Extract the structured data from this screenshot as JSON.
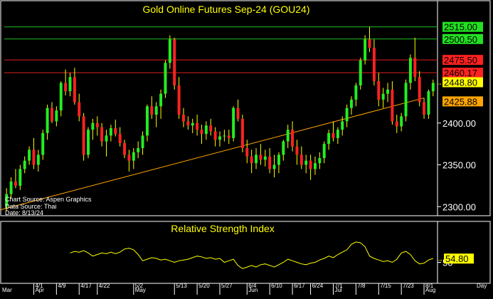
{
  "chart_data": {
    "type": "candlestick",
    "title": "Gold Online Futures Sep-24 (GOU24)",
    "source_lines": [
      "Chart Source: Aspen Graphics",
      "Data Source: Thai",
      "Date: 8/13/24"
    ],
    "ylim": [
      2290,
      2525
    ],
    "y_ticks": [
      2300,
      2350,
      2400
    ],
    "y_tick_labels": [
      "2300.00",
      "2350.00",
      "2400.00"
    ],
    "levels": [
      {
        "value": 2515.0,
        "label": "2515.00",
        "color": "#22c022",
        "label_bg": "#22e022"
      },
      {
        "value": 2500.5,
        "label": "2500.50",
        "color": "#22c022",
        "label_bg": "#22e022"
      },
      {
        "value": 2475.5,
        "label": "2475.50",
        "color": "#e02020",
        "label_bg": "#ff2020"
      },
      {
        "value": 2460.17,
        "label": "2460.17",
        "color": "#e02020",
        "label_bg": "#ff2020"
      }
    ],
    "current_price": {
      "value": 2448.8,
      "label": "2448.80",
      "label_bg": "#ffff00"
    },
    "trendline_label": {
      "value": 2425.88,
      "label": "2425.88",
      "label_bg": "#ffa500"
    },
    "trendline": {
      "start": [
        -14,
        2278
      ],
      "end": [
        92,
        2430
      ],
      "color": "#ffa500"
    },
    "candles": [
      [
        2300,
        2322,
        2295,
        2315
      ],
      [
        2315,
        2335,
        2310,
        2330
      ],
      [
        2330,
        2345,
        2322,
        2325
      ],
      [
        2325,
        2350,
        2320,
        2345
      ],
      [
        2345,
        2360,
        2340,
        2355
      ],
      [
        2355,
        2372,
        2350,
        2368
      ],
      [
        2368,
        2382,
        2345,
        2350
      ],
      [
        2350,
        2368,
        2342,
        2362
      ],
      [
        2362,
        2392,
        2356,
        2388
      ],
      [
        2388,
        2422,
        2380,
        2418
      ],
      [
        2418,
        2425,
        2400,
        2402
      ],
      [
        2402,
        2420,
        2396,
        2415
      ],
      [
        2415,
        2450,
        2408,
        2448
      ],
      [
        2448,
        2464,
        2433,
        2438
      ],
      [
        2438,
        2460,
        2432,
        2455
      ],
      [
        2455,
        2466,
        2422,
        2425
      ],
      [
        2425,
        2435,
        2402,
        2408
      ],
      [
        2408,
        2412,
        2355,
        2362
      ],
      [
        2362,
        2395,
        2358,
        2392
      ],
      [
        2392,
        2405,
        2380,
        2400
      ],
      [
        2400,
        2408,
        2385,
        2395
      ],
      [
        2395,
        2400,
        2372,
        2378
      ],
      [
        2378,
        2392,
        2360,
        2385
      ],
      [
        2385,
        2398,
        2378,
        2394
      ],
      [
        2394,
        2404,
        2384,
        2387
      ],
      [
        2387,
        2395,
        2372,
        2376
      ],
      [
        2376,
        2380,
        2358,
        2362
      ],
      [
        2362,
        2368,
        2342,
        2355
      ],
      [
        2355,
        2370,
        2345,
        2365
      ],
      [
        2365,
        2378,
        2358,
        2370
      ],
      [
        2370,
        2390,
        2362,
        2385
      ],
      [
        2385,
        2422,
        2378,
        2420
      ],
      [
        2420,
        2432,
        2405,
        2410
      ],
      [
        2410,
        2425,
        2395,
        2420
      ],
      [
        2420,
        2440,
        2405,
        2435
      ],
      [
        2435,
        2475,
        2430,
        2472
      ],
      [
        2472,
        2505,
        2465,
        2500
      ],
      [
        2500,
        2502,
        2440,
        2445
      ],
      [
        2445,
        2455,
        2405,
        2410
      ],
      [
        2410,
        2418,
        2395,
        2402
      ],
      [
        2402,
        2408,
        2392,
        2397
      ],
      [
        2397,
        2405,
        2388,
        2400
      ],
      [
        2400,
        2410,
        2385,
        2392
      ],
      [
        2392,
        2398,
        2375,
        2387
      ],
      [
        2387,
        2402,
        2380,
        2397
      ],
      [
        2397,
        2405,
        2385,
        2390
      ],
      [
        2390,
        2395,
        2372,
        2380
      ],
      [
        2380,
        2390,
        2372,
        2384
      ],
      [
        2384,
        2392,
        2378,
        2385
      ],
      [
        2385,
        2392,
        2375,
        2382
      ],
      [
        2382,
        2420,
        2378,
        2418
      ],
      [
        2418,
        2428,
        2402,
        2405
      ],
      [
        2405,
        2410,
        2365,
        2370
      ],
      [
        2370,
        2380,
        2352,
        2360
      ],
      [
        2360,
        2368,
        2340,
        2352
      ],
      [
        2352,
        2370,
        2345,
        2362
      ],
      [
        2362,
        2375,
        2350,
        2356
      ],
      [
        2356,
        2368,
        2348,
        2360
      ],
      [
        2360,
        2370,
        2340,
        2345
      ],
      [
        2345,
        2362,
        2335,
        2350
      ],
      [
        2350,
        2365,
        2340,
        2362
      ],
      [
        2362,
        2380,
        2355,
        2378
      ],
      [
        2378,
        2398,
        2370,
        2392
      ],
      [
        2392,
        2402,
        2366,
        2372
      ],
      [
        2372,
        2380,
        2350,
        2362
      ],
      [
        2362,
        2372,
        2345,
        2350
      ],
      [
        2350,
        2362,
        2340,
        2355
      ],
      [
        2355,
        2362,
        2332,
        2345
      ],
      [
        2345,
        2360,
        2338,
        2352
      ],
      [
        2352,
        2365,
        2345,
        2358
      ],
      [
        2358,
        2378,
        2352,
        2375
      ],
      [
        2375,
        2392,
        2368,
        2388
      ],
      [
        2388,
        2402,
        2378,
        2382
      ],
      [
        2382,
        2395,
        2375,
        2392
      ],
      [
        2392,
        2408,
        2385,
        2402
      ],
      [
        2402,
        2422,
        2395,
        2418
      ],
      [
        2418,
        2432,
        2410,
        2428
      ],
      [
        2428,
        2448,
        2420,
        2445
      ],
      [
        2445,
        2478,
        2440,
        2475
      ],
      [
        2475,
        2505,
        2470,
        2500
      ],
      [
        2500,
        2515,
        2485,
        2490
      ],
      [
        2490,
        2500,
        2445,
        2450
      ],
      [
        2450,
        2460,
        2420,
        2428
      ],
      [
        2428,
        2442,
        2418,
        2435
      ],
      [
        2435,
        2448,
        2425,
        2440
      ],
      [
        2440,
        2450,
        2398,
        2402
      ],
      [
        2402,
        2410,
        2388,
        2396
      ],
      [
        2396,
        2412,
        2390,
        2408
      ],
      [
        2408,
        2452,
        2402,
        2448
      ],
      [
        2448,
        2482,
        2440,
        2478
      ],
      [
        2478,
        2502,
        2450,
        2455
      ],
      [
        2455,
        2462,
        2420,
        2425
      ],
      [
        2425,
        2430,
        2405,
        2410
      ],
      [
        2410,
        2440,
        2405,
        2438
      ],
      [
        2438,
        2452,
        2432,
        2448
      ]
    ],
    "rsi": {
      "title": "Relative Strength Index",
      "ylim": [
        25,
        85
      ],
      "y_ticks": [
        50
      ],
      "y_tick_labels": [
        "50"
      ],
      "current": {
        "value": 54.8,
        "label": "54.80",
        "label_bg": "#ffff00"
      },
      "values": [
        null,
        null,
        null,
        null,
        null,
        null,
        null,
        null,
        null,
        null,
        null,
        null,
        null,
        null,
        62,
        64,
        63,
        65,
        62,
        58,
        60,
        62,
        61,
        63,
        61,
        63,
        67,
        68,
        66,
        60,
        52,
        54,
        56,
        55,
        53,
        54,
        52,
        50,
        52,
        53,
        54,
        56,
        58,
        57,
        55,
        56,
        54,
        55,
        50,
        52,
        54,
        46,
        42,
        44,
        46,
        44,
        47,
        48,
        46,
        44,
        47,
        50,
        54,
        52,
        50,
        48,
        47,
        49,
        50,
        53,
        55,
        58,
        56,
        60,
        63,
        66,
        73,
        76,
        75,
        70,
        58,
        55,
        53,
        51,
        52,
        50,
        54,
        62,
        64,
        60,
        52,
        48,
        49,
        53,
        55
      ]
    },
    "x_ticks": [
      {
        "i": 6,
        "day": "4/1",
        "month": "Apr"
      },
      {
        "i": 11,
        "day": "4/9",
        "month": ""
      },
      {
        "i": 16,
        "day": "4/17",
        "month": ""
      },
      {
        "i": 20,
        "day": "4/22",
        "month": ""
      },
      {
        "i": 28,
        "day": "5/2",
        "month": "May"
      },
      {
        "i": 37,
        "day": "5/13",
        "month": ""
      },
      {
        "i": 42,
        "day": "5/20",
        "month": ""
      },
      {
        "i": 47,
        "day": "5/27",
        "month": ""
      },
      {
        "i": 53,
        "day": "6/4",
        "month": "Jun"
      },
      {
        "i": 58,
        "day": "6/10",
        "month": ""
      },
      {
        "i": 63,
        "day": "6/17",
        "month": ""
      },
      {
        "i": 67,
        "day": "6/24",
        "month": ""
      },
      {
        "i": 72,
        "day": "7/1",
        "month": "Jul"
      },
      {
        "i": 77,
        "day": "7/8",
        "month": ""
      },
      {
        "i": 82,
        "day": "7/15",
        "month": ""
      },
      {
        "i": 87,
        "day": "7/23",
        "month": ""
      },
      {
        "i": 92,
        "day": "8/1",
        "month": "Aug"
      }
    ],
    "x_first_month": "Mar",
    "x_axis_unit": "Day"
  }
}
